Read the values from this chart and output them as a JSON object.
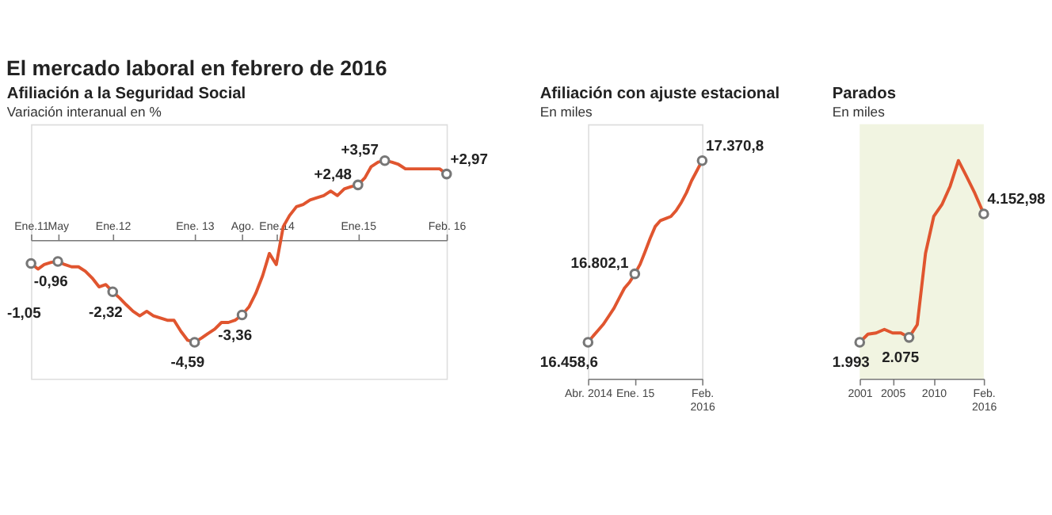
{
  "chart_data": [
    {
      "type": "line",
      "annotations": [
        "El mercado laboral en febrero de 2016"
      ],
      "title": "Afiliación a la Seguridad Social",
      "subtitle": "Variación interanual en %",
      "tick_labels": "x",
      "grid": false,
      "x": [
        "2011-01",
        "2011-02",
        "2011-03",
        "2011-04",
        "2011-05",
        "2011-06",
        "2011-07",
        "2011-08",
        "2011-09",
        "2011-10",
        "2011-11",
        "2011-12",
        "2012-01",
        "2012-02",
        "2012-03",
        "2012-04",
        "2012-05",
        "2012-06",
        "2012-07",
        "2012-08",
        "2012-09",
        "2012-10",
        "2012-11",
        "2012-12",
        "2013-01",
        "2013-02",
        "2013-03",
        "2013-04",
        "2013-05",
        "2013-06",
        "2013-07",
        "2013-08",
        "2013-09",
        "2013-10",
        "2013-11",
        "2013-12",
        "2014-01",
        "2014-02",
        "2014-03",
        "2014-04",
        "2014-05",
        "2014-06",
        "2014-07",
        "2014-08",
        "2014-09",
        "2014-10",
        "2014-11",
        "2014-12",
        "2015-01",
        "2015-02",
        "2015-03",
        "2015-04",
        "2015-05",
        "2015-06",
        "2015-07",
        "2015-08",
        "2015-09",
        "2015-10",
        "2015-11",
        "2015-12",
        "2016-01",
        "2016-02"
      ],
      "xlim": [
        "2011-01",
        "2016-02"
      ],
      "xticks": [
        {
          "value": "2011-01",
          "label": "Ene.11"
        },
        {
          "value": "2011-05",
          "label": "May"
        },
        {
          "value": "2012-01",
          "label": "Ene.12"
        },
        {
          "value": "2013-01",
          "label": "Ene. 13"
        },
        {
          "value": "2013-08",
          "label": "Ago."
        },
        {
          "value": "2014-01",
          "label": "Ene.14"
        },
        {
          "value": "2015-01",
          "label": "Ene.15"
        },
        {
          "value": "2016-02",
          "label": "Feb. 16"
        }
      ],
      "series": [
        {
          "color": "#e0552f",
          "values": [
            -1.05,
            -1.3,
            -1.1,
            -1.0,
            -0.96,
            -1.1,
            -1.2,
            -1.2,
            -1.4,
            -1.7,
            -2.1,
            -2.0,
            -2.32,
            -2.6,
            -2.9,
            -3.2,
            -3.4,
            -3.2,
            -3.4,
            -3.5,
            -3.6,
            -3.6,
            -4.1,
            -4.5,
            -4.59,
            -4.4,
            -4.2,
            -4.0,
            -3.7,
            -3.7,
            -3.6,
            -3.36,
            -3.0,
            -2.4,
            -1.6,
            -0.6,
            -1.1,
            0.6,
            1.1,
            1.5,
            1.6,
            1.8,
            1.9,
            2.0,
            2.2,
            2.0,
            2.3,
            2.4,
            2.48,
            2.8,
            3.3,
            3.5,
            3.57,
            3.5,
            3.4,
            3.2,
            3.2,
            3.2,
            3.2,
            3.2,
            3.2,
            2.97
          ],
          "value_labels": [
            "-1,05",
            null,
            null,
            null,
            "-0,96",
            null,
            null,
            null,
            null,
            null,
            null,
            null,
            "-2,32",
            null,
            null,
            null,
            null,
            null,
            null,
            null,
            null,
            null,
            null,
            null,
            "-4,59",
            null,
            null,
            null,
            null,
            null,
            null,
            "-3,36",
            null,
            null,
            null,
            null,
            null,
            null,
            null,
            null,
            null,
            null,
            null,
            null,
            null,
            null,
            null,
            null,
            "+2,48",
            null,
            null,
            null,
            "+3,57",
            null,
            null,
            null,
            null,
            null,
            null,
            null,
            null,
            "+2,97"
          ]
        }
      ]
    },
    {
      "type": "line",
      "title": "Afiliación con ajuste estacional",
      "subtitle": "En miles",
      "tick_labels": "x",
      "grid": false,
      "x": [
        "2014-04",
        "2014-05",
        "2014-06",
        "2014-07",
        "2014-08",
        "2014-09",
        "2014-10",
        "2014-11",
        "2014-12",
        "2015-01",
        "2015-02",
        "2015-03",
        "2015-04",
        "2015-05",
        "2015-06",
        "2015-07",
        "2015-08",
        "2015-09",
        "2015-10",
        "2015-11",
        "2015-12",
        "2016-01",
        "2016-02"
      ],
      "xlim": [
        "2014-04",
        "2016-02"
      ],
      "xticks": [
        {
          "value": "2014-04",
          "label": "Abr. 2014"
        },
        {
          "value": "2015-01",
          "label": "Ene. 15"
        },
        {
          "value": "2016-02",
          "label": "Feb.\n2016"
        }
      ],
      "series": [
        {
          "color": "#e0552f",
          "values": [
            16458.6,
            16490,
            16520,
            16550,
            16590,
            16630,
            16680,
            16730,
            16760,
            16802.1,
            16850,
            16910,
            16980,
            17040,
            17070,
            17080,
            17090,
            17120,
            17160,
            17210,
            17270,
            17320,
            17370.8
          ],
          "value_labels": [
            "16.458,6",
            null,
            null,
            null,
            null,
            null,
            null,
            null,
            null,
            "16.802,1",
            null,
            null,
            null,
            null,
            null,
            null,
            null,
            null,
            null,
            null,
            null,
            null,
            "17.370,8"
          ]
        }
      ]
    },
    {
      "type": "line",
      "title": "Parados",
      "subtitle": "En miles",
      "tick_labels": "x",
      "grid": false,
      "x": [
        "2001",
        "2002",
        "2003",
        "2004",
        "2005",
        "2006",
        "2007",
        "2008",
        "2009",
        "2010",
        "2011",
        "2012",
        "2013",
        "2014",
        "2015",
        "2016-02"
      ],
      "xlim": [
        "2001",
        "2016-02"
      ],
      "xticks": [
        {
          "value": "2001",
          "label": "2001"
        },
        {
          "value": "2005",
          "label": "2005"
        },
        {
          "value": "2010",
          "label": "2010"
        },
        {
          "value": "2016-02",
          "label": "Feb.\n2016"
        }
      ],
      "series": [
        {
          "color": "#e0552f",
          "values": [
            1993,
            2130,
            2150,
            2210,
            2150,
            2150,
            2075,
            2290,
            3490,
            4110,
            4310,
            4620,
            5050,
            4780,
            4500,
            4152.98
          ],
          "value_labels": [
            "1.993",
            null,
            null,
            null,
            null,
            null,
            "2.075",
            null,
            null,
            null,
            null,
            null,
            null,
            null,
            null,
            "4.152,98"
          ]
        }
      ]
    }
  ]
}
